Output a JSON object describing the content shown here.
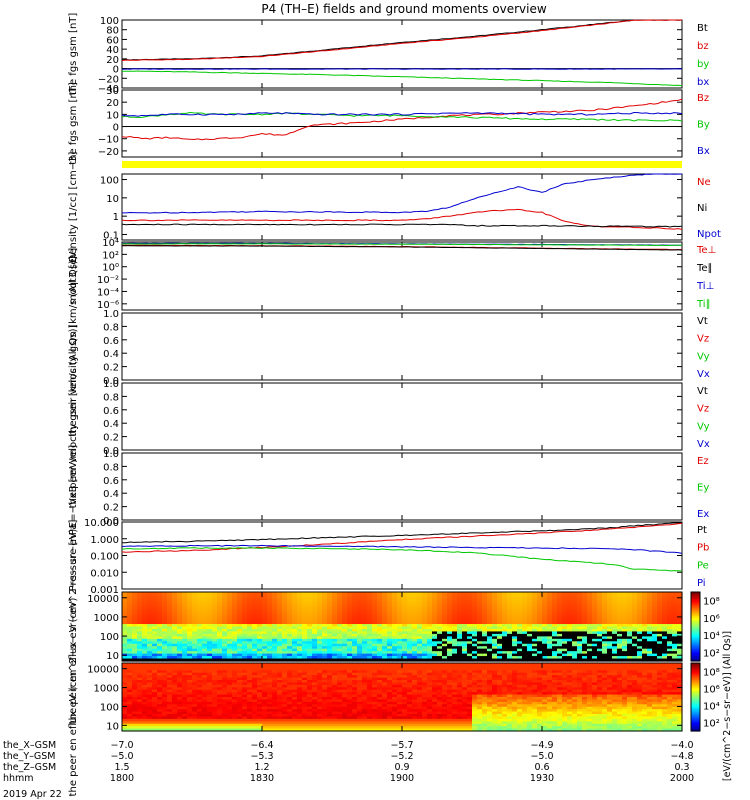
{
  "title": "P4 (TH–E) fields and ground moments overview",
  "date_label": "2019 Apr 22",
  "colorbar_label": "[eV/(cm^2−s−sr−eV)] (All Qs)]",
  "colors": {
    "black": "#000000",
    "red": "#e00000",
    "green": "#00c800",
    "blue": "#0000d0",
    "yellow": "#ffff00"
  },
  "time_axis": {
    "rows": [
      {
        "label": "the_X–GSM",
        "values": [
          "−7.0",
          "−6.4",
          "−5.7",
          "−4.9",
          "−4.0"
        ]
      },
      {
        "label": "the_Y–GSM",
        "values": [
          "−5.0",
          "−5.3",
          "−5.2",
          "−5.0",
          "−4.8"
        ]
      },
      {
        "label": "the_Z–GSM",
        "values": [
          "1.5",
          "1.2",
          "0.9",
          "0.6",
          "0.3"
        ]
      },
      {
        "label": "hhmm",
        "values": [
          "1800",
          "1830",
          "1900",
          "1930",
          "2000"
        ]
      }
    ]
  },
  "chart_data": [
    {
      "type": "line",
      "ylabel": "the fgs gsm [nT]",
      "ylim": [
        -40,
        100
      ],
      "ticks": [
        "100",
        "80",
        "60",
        "40",
        "20",
        "0",
        "−20",
        "−40"
      ],
      "tick_values": [
        100,
        80,
        60,
        40,
        20,
        0,
        -20,
        -40
      ],
      "legend": [
        "Bt",
        "bz",
        "by",
        "bx"
      ],
      "legend_colors": [
        "#000000",
        "#e00000",
        "#00c800",
        "#0000d0"
      ],
      "x": [
        1800,
        1815,
        1830,
        1845,
        1900,
        1915,
        1930,
        1945,
        1950,
        2000
      ],
      "series": [
        {
          "name": "Bt",
          "color": "#000000",
          "values": [
            18,
            20,
            26,
            40,
            54,
            66,
            80,
            95,
            100,
            100
          ]
        },
        {
          "name": "bz",
          "color": "#e00000",
          "values": [
            17,
            19,
            25,
            38,
            52,
            64,
            78,
            94,
            100,
            100
          ]
        },
        {
          "name": "by",
          "color": "#00c800",
          "values": [
            -5,
            -7,
            -10,
            -13,
            -17,
            -21,
            -25,
            -29,
            -31,
            -35
          ]
        },
        {
          "name": "bx",
          "color": "#0000d0",
          "values": [
            -1,
            -1,
            -1,
            -1,
            -1,
            -1,
            -1,
            -1,
            -1,
            -1
          ]
        }
      ],
      "zero_line": true
    },
    {
      "type": "line",
      "ylabel": "the fgs gsm [nT]",
      "ylim": [
        -25,
        30
      ],
      "ticks": [
        "30",
        "20",
        "10",
        "0",
        "−10",
        "−20"
      ],
      "tick_values": [
        30,
        20,
        10,
        0,
        -10,
        -20
      ],
      "legend": [
        "Bz",
        "By",
        "Bx"
      ],
      "legend_colors": [
        "#e00000",
        "#00c800",
        "#0000d0"
      ],
      "x": [
        1800,
        1805,
        1810,
        1815,
        1820,
        1825,
        1830,
        1835,
        1840,
        1850,
        1900,
        1910,
        1920,
        1930,
        1940,
        1950,
        2000
      ],
      "series": [
        {
          "name": "Bz",
          "color": "#e00000",
          "values": [
            -8,
            -10,
            -9,
            -11,
            -10,
            -9,
            -6,
            -7,
            1,
            3,
            6,
            9,
            10,
            12,
            13,
            17,
            22
          ]
        },
        {
          "name": "By",
          "color": "#00c800",
          "values": [
            8,
            8,
            10,
            11,
            10,
            10,
            10,
            11,
            10,
            9,
            9,
            8,
            7,
            6,
            6,
            5,
            5
          ]
        },
        {
          "name": "Bx",
          "color": "#0000d0",
          "values": [
            9,
            9,
            10,
            10,
            10,
            10,
            11,
            11,
            10,
            10,
            10,
            11,
            11,
            10,
            10,
            11,
            11
          ]
        }
      ],
      "zero_line": true
    },
    {
      "type": "line",
      "ylabel": "Density [1/cc] [cm−3]",
      "log": true,
      "ylim": [
        0.05,
        200
      ],
      "ticks": [
        "100",
        "10",
        "1",
        "0.1"
      ],
      "tick_values": [
        100,
        10,
        1,
        0.1
      ],
      "legend": [
        "Ne",
        "Ni",
        "Npot"
      ],
      "legend_colors": [
        "#e00000",
        "#000000",
        "#0000d0"
      ],
      "x": [
        1800,
        1815,
        1830,
        1845,
        1900,
        1905,
        1910,
        1915,
        1920,
        1925,
        1930,
        1935,
        1940,
        1945,
        1950,
        1955,
        2000
      ],
      "series": [
        {
          "name": "Npot",
          "color": "#0000d0",
          "values": [
            1.5,
            1.6,
            1.8,
            1.7,
            1.6,
            1.8,
            3,
            8,
            20,
            40,
            20,
            60,
            90,
            130,
            180,
            200,
            200
          ]
        },
        {
          "name": "Ne",
          "color": "#e00000",
          "values": [
            0.6,
            0.6,
            0.6,
            0.6,
            0.6,
            0.7,
            1,
            1.5,
            2,
            2.2,
            1.6,
            0.5,
            0.3,
            0.25,
            0.25,
            0.22,
            0.2
          ]
        },
        {
          "name": "Ni",
          "color": "#000000",
          "values": [
            0.35,
            0.35,
            0.35,
            0.35,
            0.35,
            0.35,
            0.35,
            0.3,
            0.3,
            0.3,
            0.3,
            0.3,
            0.28,
            0.28,
            0.28,
            0.27,
            0.27
          ]
        }
      ]
    },
    {
      "type": "line",
      "ylabel": "moqt3 [eV]",
      "log": true,
      "ylim": [
        1e-07,
        10000
      ],
      "ticks": [
        "10⁴",
        "10²",
        "10⁰",
        "10⁻²",
        "10⁻⁴",
        "10⁻⁶"
      ],
      "tick_values": [
        10000,
        100,
        1,
        0.01,
        0.0001,
        1e-06
      ],
      "legend": [
        "Te⊥",
        "Te∥",
        "Ti⊥",
        "Ti∥"
      ],
      "legend_colors": [
        "#e00000",
        "#000000",
        "#0000d0",
        "#00c800"
      ],
      "x": [
        1800,
        1830,
        1900,
        1930,
        2000
      ],
      "series": [
        {
          "name": "Te⊥",
          "color": "#e00000",
          "values": [
            3000,
            2500,
            1800,
            1000,
            600
          ]
        },
        {
          "name": "Te∥",
          "color": "#000000",
          "values": [
            2500,
            2200,
            1600,
            900,
            500
          ]
        },
        {
          "name": "Ti⊥",
          "color": "#0000d0",
          "values": [
            6000,
            6000,
            5000,
            4000,
            3000
          ]
        },
        {
          "name": "Ti∥",
          "color": "#00c800",
          "values": [
            5000,
            5000,
            4500,
            3500,
            2800
          ]
        }
      ]
    },
    {
      "type": "line",
      "ylabel": "the peir velocity gsm [km/s (All Qs)]",
      "ylim": [
        0,
        1
      ],
      "ticks": [
        "1.0",
        "0.8",
        "0.6",
        "0.4",
        "0.2",
        "0.0"
      ],
      "tick_values": [
        1,
        0.8,
        0.6,
        0.4,
        0.2,
        0
      ],
      "legend": [
        "Vt",
        "Vz",
        "Vy",
        "Vx"
      ],
      "legend_colors": [
        "#000000",
        "#e00000",
        "#00c800",
        "#0000d0"
      ],
      "series": []
    },
    {
      "type": "line",
      "ylabel": "the peer velocity gsm [km/s (All Qs)]",
      "ylim": [
        0,
        1
      ],
      "ticks": [
        "1.0",
        "0.8",
        "0.6",
        "0.4",
        "0.2",
        "0.0"
      ],
      "tick_values": [
        1,
        0.8,
        0.6,
        0.4,
        0.2,
        0
      ],
      "legend": [
        "Vt",
        "Vz",
        "Vy",
        "Vx"
      ],
      "legend_colors": [
        "#000000",
        "#e00000",
        "#00c800",
        "#0000d0"
      ],
      "series": []
    },
    {
      "type": "line",
      "ylabel": "E=−VxB [mV/m]",
      "ylim": [
        0,
        1
      ],
      "ticks": [
        "1.0",
        "0.8",
        "0.6",
        "0.4",
        "0.2",
        "0.0"
      ],
      "tick_values": [
        1,
        0.8,
        0.6,
        0.4,
        0.2,
        0
      ],
      "legend": [
        "Ez",
        "Ey",
        "Ex"
      ],
      "legend_colors": [
        "#e00000",
        "#00c800",
        "#0000d0"
      ],
      "series": []
    },
    {
      "type": "line",
      "ylabel": "Pressure [nPa]",
      "log": true,
      "ylim": [
        0.001,
        10
      ],
      "ticks": [
        "10.000",
        "1.000",
        "0.100",
        "0.010",
        "0.001"
      ],
      "tick_values": [
        10,
        1,
        0.1,
        0.01,
        0.001
      ],
      "legend": [
        "Pt",
        "Pb",
        "Pe",
        "Pi"
      ],
      "legend_colors": [
        "#000000",
        "#e00000",
        "#00c800",
        "#0000d0"
      ],
      "x": [
        1800,
        1815,
        1830,
        1845,
        1900,
        1915,
        1930,
        1945,
        1950,
        2000
      ],
      "series": [
        {
          "name": "Pt",
          "color": "#000000",
          "values": [
            0.6,
            0.7,
            0.9,
            1.2,
            1.6,
            2.2,
            3,
            4.5,
            6,
            9
          ]
        },
        {
          "name": "Pb",
          "color": "#e00000",
          "values": [
            0.16,
            0.2,
            0.3,
            0.5,
            0.9,
            1.4,
            2.2,
            3.8,
            5,
            8
          ]
        },
        {
          "name": "Pi",
          "color": "#0000d0",
          "values": [
            0.35,
            0.38,
            0.38,
            0.36,
            0.33,
            0.3,
            0.28,
            0.25,
            0.22,
            0.14
          ]
        },
        {
          "name": "Pe",
          "color": "#00c800",
          "values": [
            0.25,
            0.28,
            0.28,
            0.26,
            0.22,
            0.15,
            0.06,
            0.03,
            0.015,
            0.012
          ]
        }
      ]
    },
    {
      "type": "heatmap",
      "ylabel": "the peir en eflux eV (cm^2−s− sr−eV)",
      "log": true,
      "ylim": [
        5,
        20000
      ],
      "ticks": [
        "10000",
        "1000",
        "100",
        "10"
      ],
      "tick_values": [
        10000,
        1000,
        100,
        10
      ],
      "colorbar_ticks": [
        "10⁸",
        "10⁶",
        "10⁴",
        "10²"
      ],
      "colorbar_tick_values": [
        8,
        6,
        4,
        2
      ],
      "colorbar_range": [
        1,
        9
      ]
    },
    {
      "type": "heatmap",
      "ylabel": "the peer en eflux eV (cm^2−s− sr−eV)",
      "log": true,
      "ylim": [
        5,
        20000
      ],
      "ticks": [
        "10000",
        "1000",
        "100",
        "10"
      ],
      "tick_values": [
        10000,
        1000,
        100,
        10
      ],
      "colorbar_ticks": [
        "10⁸",
        "10⁶",
        "10⁴",
        "10²"
      ],
      "colorbar_tick_values": [
        8,
        6,
        4,
        2
      ],
      "colorbar_range": [
        1,
        9
      ]
    }
  ]
}
